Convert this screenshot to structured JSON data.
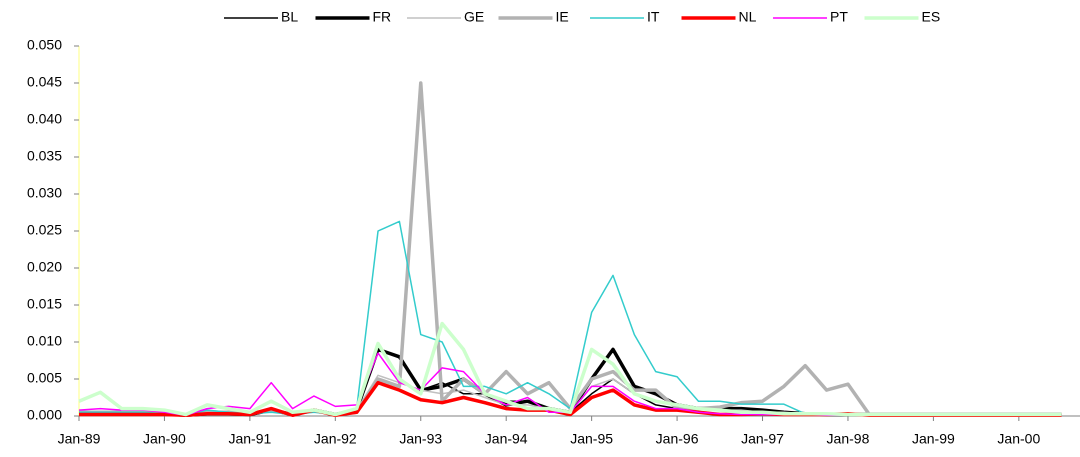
{
  "chart_data": {
    "type": "line",
    "categories": [
      "Jan-89",
      null,
      null,
      null,
      "Jan-90",
      null,
      null,
      null,
      "Jan-91",
      null,
      null,
      null,
      "Jan-92",
      null,
      null,
      null,
      "Jan-93",
      null,
      null,
      null,
      "Jan-94",
      null,
      null,
      null,
      "Jan-95",
      null,
      null,
      null,
      "Jan-96",
      null,
      null,
      null,
      "Jan-97",
      null,
      null,
      null,
      "Jan-98",
      null,
      null,
      null,
      "Jan-99",
      null,
      null,
      null,
      "Jan-00",
      null,
      null
    ],
    "ylim": [
      0,
      0.05
    ],
    "yticks": [
      {
        "value": 0,
        "label": "0.000"
      },
      {
        "value": 0.005,
        "label": "0.005"
      },
      {
        "value": 0.01,
        "label": "0.010"
      },
      {
        "value": 0.015,
        "label": "0.015"
      },
      {
        "value": 0.02,
        "label": "0.020"
      },
      {
        "value": 0.025,
        "label": "0.025"
      },
      {
        "value": 0.03,
        "label": "0.030"
      },
      {
        "value": 0.035,
        "label": "0.035"
      },
      {
        "value": 0.04,
        "label": "0.040"
      },
      {
        "value": 0.045,
        "label": "0.045"
      },
      {
        "value": 0.05,
        "label": "0.050"
      }
    ],
    "legend": "top",
    "series": [
      {
        "name": "BL",
        "color": "#000000",
        "width": 1.5,
        "values": [
          0.0005,
          0.0005,
          0.0005,
          0.0005,
          0.0003,
          0.0001,
          0.0005,
          0.0005,
          0.0003,
          0.0008,
          0.0002,
          0.0008,
          0.0002,
          0.0005,
          0.009,
          0.008,
          0.0035,
          0.0045,
          0.003,
          0.003,
          0.002,
          0.002,
          0.001,
          0.0005,
          0.003,
          0.005,
          0.003,
          0.0015,
          0.001,
          0.001,
          0.0008,
          0.0008,
          0.0005,
          0.0003,
          0.0002,
          0.0002,
          0.0002,
          0.0002,
          0.0002,
          0.0002,
          0.0002,
          0.0002,
          0.0002,
          0.0002,
          0.0002,
          0.0002,
          0.0002
        ]
      },
      {
        "name": "FR",
        "color": "#000000",
        "width": 3.5,
        "values": [
          0.0003,
          0.0003,
          0.0003,
          0.0003,
          0.0003,
          0.0001,
          0.0003,
          0.0003,
          0.0002,
          0.0008,
          0.0002,
          0.0008,
          0.0002,
          0.0008,
          0.009,
          0.008,
          0.0035,
          0.004,
          0.005,
          0.003,
          0.0015,
          0.002,
          0.001,
          0.0005,
          0.005,
          0.009,
          0.004,
          0.003,
          0.0015,
          0.001,
          0.001,
          0.001,
          0.0008,
          0.0005,
          0.0003,
          0.0002,
          0.0002,
          0.0002,
          0.0002,
          0.0002,
          0.0002,
          0.0002,
          0.0002,
          0.0002,
          0.0002,
          0.0002,
          0.0002
        ]
      },
      {
        "name": "GE",
        "color": "#c0c0c0",
        "width": 1.5,
        "values": [
          0.0005,
          0.0005,
          0.0005,
          0.0005,
          0.0004,
          0.0001,
          0.0008,
          0.0005,
          0.0003,
          0.0008,
          0.0002,
          0.0008,
          0.0002,
          0.0008,
          0.0055,
          0.0045,
          0.0035,
          0.003,
          0.0035,
          0.0025,
          0.0015,
          0.0015,
          0.001,
          0.0005,
          0.004,
          0.005,
          0.003,
          0.002,
          0.0015,
          0.001,
          0.0008,
          0.0008,
          0.0005,
          0.0005,
          0.0003,
          0.0002,
          0.0002,
          0.0002,
          0.0002,
          0.0002,
          0.0002,
          0.0002,
          0.0002,
          0.0002,
          0.0002,
          0.0002,
          0.0002
        ]
      },
      {
        "name": "IE",
        "color": "#b2b2b2",
        "width": 3.5,
        "values": [
          0.0005,
          0.0005,
          0.0005,
          0.0005,
          0.0003,
          0.0001,
          0.0005,
          0.0005,
          0.0003,
          0.0008,
          0.0002,
          0.0008,
          0.0002,
          0.0005,
          0.005,
          0.004,
          0.045,
          0.002,
          0.005,
          0.003,
          0.006,
          0.003,
          0.0045,
          0.001,
          0.005,
          0.006,
          0.0035,
          0.0035,
          0.001,
          0.001,
          0.0012,
          0.0018,
          0.002,
          0.004,
          0.0068,
          0.0035,
          0.0043,
          0.0002,
          0.0002,
          0.0002,
          0.0002,
          0.0002,
          0.0002,
          0.0002,
          0.0002,
          0.0002,
          0.0002
        ]
      },
      {
        "name": "IT",
        "color": "#33cccc",
        "width": 1.5,
        "values": [
          0.0005,
          0.0005,
          0.0005,
          0.0005,
          0.0003,
          0.0001,
          0.0008,
          0.0005,
          0.0003,
          0.0005,
          0.0002,
          0.0005,
          0.0002,
          0.001,
          0.025,
          0.0263,
          0.011,
          0.01,
          0.004,
          0.004,
          0.003,
          0.0045,
          0.003,
          0.001,
          0.014,
          0.019,
          0.011,
          0.006,
          0.0053,
          0.002,
          0.002,
          0.0016,
          0.0016,
          0.0016,
          0.0003,
          0.0003,
          0.0002,
          0.0002,
          0.0002,
          0.0002,
          0.0002,
          0.0002,
          0.0002,
          0.0002,
          0.0002,
          0.0002,
          0.0002
        ]
      },
      {
        "name": "NL",
        "color": "#ff0000",
        "width": 3.5,
        "values": [
          0.0002,
          0.0002,
          0.0002,
          0.0002,
          0.0002,
          0.0001,
          0.0003,
          0.0003,
          0.0002,
          0.001,
          0.0001,
          0.0008,
          0.0001,
          0.0005,
          0.0045,
          0.0035,
          0.0022,
          0.0018,
          0.0025,
          0.0018,
          0.001,
          0.0008,
          0.0008,
          0.0002,
          0.0025,
          0.0035,
          0.0015,
          0.0008,
          0.0008,
          0.0005,
          0.0002,
          0.0002,
          0.0003,
          0.0002,
          0.0002,
          0.0002,
          0.0003,
          0.0001,
          0.0001,
          0.0001,
          0.0001,
          0.0001,
          0.0001,
          0.0001,
          0.0001,
          0.0001,
          0.0001
        ]
      },
      {
        "name": "PT",
        "color": "#ff00ff",
        "width": 1.5,
        "values": [
          0.0008,
          0.001,
          0.0008,
          0.0008,
          0.0005,
          0.0001,
          0.001,
          0.0013,
          0.001,
          0.0045,
          0.001,
          0.0027,
          0.0013,
          0.0015,
          0.0085,
          0.0045,
          0.0035,
          0.0065,
          0.006,
          0.003,
          0.0015,
          0.0025,
          0.0005,
          0.0005,
          0.004,
          0.004,
          0.002,
          0.001,
          0.001,
          0.0005,
          0.0003,
          0.0002,
          0.0002,
          0.0002,
          0.0002,
          0.0001,
          0.0001,
          0.0001,
          0.0001,
          0.0001,
          0.0001,
          0.0001,
          0.0001,
          0.0001,
          0.0001,
          0.0001,
          0.0001
        ]
      },
      {
        "name": "ES",
        "color": "#ccffcc",
        "width": 3.5,
        "values": [
          0.002,
          0.0032,
          0.001,
          0.001,
          0.0008,
          0.0002,
          0.0015,
          0.001,
          0.0005,
          0.002,
          0.0005,
          0.0008,
          0.0002,
          0.001,
          0.0098,
          0.005,
          0.003,
          0.0125,
          0.009,
          0.003,
          0.002,
          0.001,
          0.001,
          0.0005,
          0.009,
          0.007,
          0.003,
          0.002,
          0.0015,
          0.001,
          0.0008,
          0.0005,
          0.0005,
          0.0003,
          0.0003,
          0.0003,
          0.0002,
          0.0002,
          0.0002,
          0.0002,
          0.0002,
          0.0002,
          0.0002,
          0.0002,
          0.0002,
          0.0002,
          0.0002
        ]
      }
    ]
  }
}
